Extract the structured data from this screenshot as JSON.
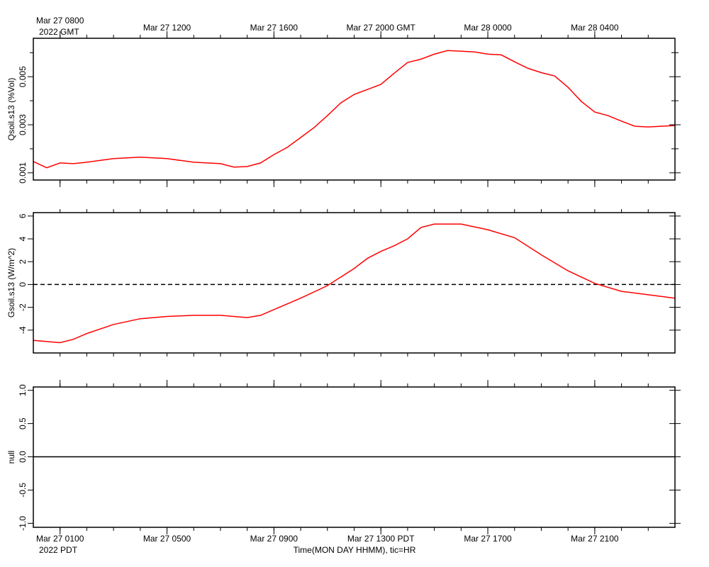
{
  "chart_data": [
    {
      "type": "line",
      "ylabel": "Qsoil.s13 (%Vol)",
      "x": [
        0,
        0.5,
        1,
        1.5,
        2,
        3,
        4,
        5,
        6,
        7,
        7.5,
        8,
        8.5,
        9,
        9.5,
        10,
        10.5,
        11,
        11.5,
        12,
        12.5,
        13,
        13.5,
        14,
        14.5,
        15,
        15.5,
        16,
        16.5,
        17,
        17.5,
        18,
        18.5,
        19,
        19.5,
        20,
        20.5,
        21,
        21.5,
        22,
        22.5,
        23,
        23.5,
        24
      ],
      "series": [
        {
          "color": "#ff0000",
          "values": [
            0.00147,
            0.00121,
            0.00141,
            0.00138,
            0.00144,
            0.00159,
            0.00165,
            0.00159,
            0.00144,
            0.00138,
            0.00124,
            0.00126,
            0.00141,
            0.00176,
            0.00206,
            0.00247,
            0.00288,
            0.00338,
            0.00391,
            0.00426,
            0.00447,
            0.00468,
            0.00515,
            0.00559,
            0.00573,
            0.00594,
            0.00609,
            0.00606,
            0.00603,
            0.00594,
            0.00591,
            0.00562,
            0.00535,
            0.00517,
            0.00503,
            0.00456,
            0.00397,
            0.00353,
            0.00338,
            0.00315,
            0.00294,
            0.00291,
            0.00294,
            0.00297
          ]
        }
      ],
      "xlim": [
        0,
        24
      ],
      "xticks": [
        {
          "value": 1,
          "label": "Mar 27 0800"
        },
        {
          "value": 5,
          "label": "Mar 27 1200"
        },
        {
          "value": 9,
          "label": "Mar 27 1600"
        },
        {
          "value": 13,
          "label": "Mar 27 2000 GMT"
        },
        {
          "value": 17,
          "label": "Mar 28 0000"
        },
        {
          "value": 21,
          "label": "Mar 28 0400"
        }
      ],
      "xticks_position": "top",
      "x_year_label": "2022 GMT",
      "xminorticks": [
        1,
        2,
        3,
        4,
        5,
        6,
        7,
        8,
        9,
        10,
        11,
        12,
        13,
        14,
        15,
        16,
        17,
        18,
        19,
        20,
        21,
        22,
        23
      ],
      "ylim": [
        0.0007,
        0.0066
      ],
      "yticks": [
        0.001,
        0.003,
        0.005
      ],
      "yminorticks": [
        0.002,
        0.004,
        0.006
      ]
    },
    {
      "type": "line",
      "ylabel": "Gsoil.s13 (W/m^2)",
      "x": [
        0,
        0.5,
        1,
        1.5,
        2,
        3,
        4,
        5,
        6,
        7,
        8,
        8.5,
        9,
        10,
        11,
        12,
        12.5,
        13,
        13.5,
        14,
        14.5,
        15,
        16,
        17,
        18,
        19,
        20,
        21,
        22,
        23,
        24
      ],
      "series": [
        {
          "color": "#ff0000",
          "values": [
            -4.9,
            -5.0,
            -5.1,
            -4.8,
            -4.3,
            -3.5,
            -3.0,
            -2.8,
            -2.7,
            -2.7,
            -2.9,
            -2.7,
            -2.2,
            -1.2,
            -0.1,
            1.4,
            2.3,
            2.9,
            3.4,
            4.0,
            5.0,
            5.3,
            5.3,
            4.8,
            4.1,
            2.6,
            1.2,
            0.1,
            -0.6,
            -0.9,
            -1.2
          ]
        }
      ],
      "xlim": [
        0,
        24
      ],
      "xminorticks": [
        1,
        2,
        3,
        4,
        5,
        6,
        7,
        8,
        9,
        10,
        11,
        12,
        13,
        14,
        15,
        16,
        17,
        18,
        19,
        20,
        21,
        22,
        23
      ],
      "ylim": [
        -6,
        6.3
      ],
      "yticks": [
        -4,
        -2,
        0,
        2,
        4,
        6
      ],
      "reference_line": {
        "value": 0,
        "style": "dashed"
      }
    },
    {
      "type": "line",
      "ylabel": "null",
      "series": [],
      "xlim": [
        0,
        24
      ],
      "xticks": [
        {
          "value": 1,
          "label": "Mar 27 0100"
        },
        {
          "value": 5,
          "label": "Mar 27 0500"
        },
        {
          "value": 9,
          "label": "Mar 27 0900"
        },
        {
          "value": 13,
          "label": "Mar 27 1300 PDT"
        },
        {
          "value": 17,
          "label": "Mar 27 1700"
        },
        {
          "value": 21,
          "label": "Mar 27 2100"
        }
      ],
      "xticks_position": "bottom",
      "x_year_label": "2022 PDT",
      "xlabel": "Time(MON DAY HHMM), tic=HR",
      "xminorticks": [
        1,
        2,
        3,
        4,
        5,
        6,
        7,
        8,
        9,
        10,
        11,
        12,
        13,
        14,
        15,
        16,
        17,
        18,
        19,
        20,
        21,
        22,
        23
      ],
      "ylim": [
        -1.06,
        1.05
      ],
      "yticks": [
        {
          "value": -1,
          "label": "-1.0"
        },
        {
          "value": -0.5,
          "label": "-0.5"
        },
        {
          "value": 0,
          "label": "0.0"
        },
        {
          "value": 0.5,
          "label": "0.5"
        },
        {
          "value": 1,
          "label": "1.0"
        }
      ],
      "reference_line": {
        "value": 0,
        "style": "solid"
      }
    }
  ]
}
